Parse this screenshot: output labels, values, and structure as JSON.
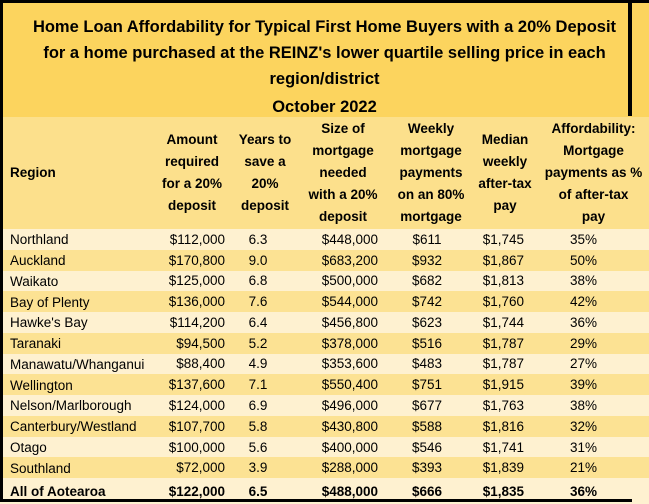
{
  "chart_data": {
    "type": "table",
    "title": "Home Loan Affordability for Typical First Home Buyers with a 20% Deposit for a home purchased at the REINZ's lower quartile selling price in each region/district",
    "subtitle": "October 2022",
    "columns": [
      "Region",
      "Amount required for a 20% deposit",
      "Years to save a 20% deposit",
      "Size of mortgage needed with a 20% deposit",
      "Weekly mortgage payments on an 80% mortgage",
      "Median weekly after-tax pay",
      "Affordability: Mortgage payments as % of after-tax pay"
    ],
    "rows": [
      [
        "Northland",
        "$112,000",
        "6.3",
        "$448,000",
        "$611",
        "$1,745",
        "35%"
      ],
      [
        "Auckland",
        "$170,800",
        "9.0",
        "$683,200",
        "$932",
        "$1,867",
        "50%"
      ],
      [
        "Waikato",
        "$125,000",
        "6.8",
        "$500,000",
        "$682",
        "$1,813",
        "38%"
      ],
      [
        "Bay of Plenty",
        "$136,000",
        "7.6",
        "$544,000",
        "$742",
        "$1,760",
        "42%"
      ],
      [
        "Hawke's Bay",
        "$114,200",
        "6.4",
        "$456,800",
        "$623",
        "$1,744",
        "36%"
      ],
      [
        "Taranaki",
        "$94,500",
        "5.2",
        "$378,000",
        "$516",
        "$1,787",
        "29%"
      ],
      [
        "Manawatu/Whanganui",
        "$88,400",
        "4.9",
        "$353,600",
        "$483",
        "$1,787",
        "27%"
      ],
      [
        "Wellington",
        "$137,600",
        "7.1",
        "$550,400",
        "$751",
        "$1,915",
        "39%"
      ],
      [
        "Nelson/Marlborough",
        "$124,000",
        "6.9",
        "$496,000",
        "$677",
        "$1,763",
        "38%"
      ],
      [
        "Canterbury/Westland",
        "$107,700",
        "5.8",
        "$430,800",
        "$588",
        "$1,816",
        "32%"
      ],
      [
        "Otago",
        "$100,000",
        "5.6",
        "$400,000",
        "$546",
        "$1,741",
        "31%"
      ],
      [
        "Southland",
        "$72,000",
        "3.9",
        "$288,000",
        "$393",
        "$1,839",
        "21%"
      ],
      [
        "All of Aotearoa",
        "$122,000",
        "6.5",
        "$488,000",
        "$666",
        "$1,835",
        "36%"
      ]
    ]
  },
  "title": {
    "lines": [
      "Home Loan Affordability for Typical First Home Buyers with a 20% Deposit",
      "for a home purchased at the REINZ's lower quartile selling price in each",
      "region/district"
    ],
    "subtitle": "October 2022"
  },
  "table": {
    "columns": [
      {
        "id": "region",
        "lines": [
          "Region"
        ]
      },
      {
        "id": "deposit_amount",
        "lines": [
          "Amount",
          "required",
          "for a 20%",
          "deposit"
        ]
      },
      {
        "id": "years_to_save",
        "lines": [
          "Years to",
          "save a",
          "20%",
          "deposit"
        ]
      },
      {
        "id": "mortgage_size",
        "lines": [
          "Size of",
          "mortgage",
          "needed",
          "with a 20%",
          "deposit"
        ]
      },
      {
        "id": "weekly_payments",
        "lines": [
          "Weekly",
          "mortgage",
          "payments",
          "on an 80%",
          "mortgage"
        ]
      },
      {
        "id": "median_pay",
        "lines": [
          "Median",
          "weekly",
          "after-tax",
          "pay"
        ]
      },
      {
        "id": "affordability",
        "lines": [
          "Affordability:",
          "Mortgage",
          "payments as %",
          "of after-tax",
          "pay"
        ]
      }
    ],
    "rows": [
      {
        "region": "Northland",
        "deposit_amount": "$112,000",
        "years_to_save": "6.3",
        "mortgage_size": "$448,000",
        "weekly_payments": "$611",
        "median_pay": "$1,745",
        "affordability": "35%",
        "bold": false
      },
      {
        "region": "Auckland",
        "deposit_amount": "$170,800",
        "years_to_save": "9.0",
        "mortgage_size": "$683,200",
        "weekly_payments": "$932",
        "median_pay": "$1,867",
        "affordability": "50%",
        "bold": false
      },
      {
        "region": "Waikato",
        "deposit_amount": "$125,000",
        "years_to_save": "6.8",
        "mortgage_size": "$500,000",
        "weekly_payments": "$682",
        "median_pay": "$1,813",
        "affordability": "38%",
        "bold": false
      },
      {
        "region": "Bay of Plenty",
        "deposit_amount": "$136,000",
        "years_to_save": "7.6",
        "mortgage_size": "$544,000",
        "weekly_payments": "$742",
        "median_pay": "$1,760",
        "affordability": "42%",
        "bold": false
      },
      {
        "region": "Hawke's Bay",
        "deposit_amount": "$114,200",
        "years_to_save": "6.4",
        "mortgage_size": "$456,800",
        "weekly_payments": "$623",
        "median_pay": "$1,744",
        "affordability": "36%",
        "bold": false
      },
      {
        "region": "Taranaki",
        "deposit_amount": "$94,500",
        "years_to_save": "5.2",
        "mortgage_size": "$378,000",
        "weekly_payments": "$516",
        "median_pay": "$1,787",
        "affordability": "29%",
        "bold": false
      },
      {
        "region": "Manawatu/Whanganui",
        "deposit_amount": "$88,400",
        "years_to_save": "4.9",
        "mortgage_size": "$353,600",
        "weekly_payments": "$483",
        "median_pay": "$1,787",
        "affordability": "27%",
        "bold": false
      },
      {
        "region": "Wellington",
        "deposit_amount": "$137,600",
        "years_to_save": "7.1",
        "mortgage_size": "$550,400",
        "weekly_payments": "$751",
        "median_pay": "$1,915",
        "affordability": "39%",
        "bold": false
      },
      {
        "region": "Nelson/Marlborough",
        "deposit_amount": "$124,000",
        "years_to_save": "6.9",
        "mortgage_size": "$496,000",
        "weekly_payments": "$677",
        "median_pay": "$1,763",
        "affordability": "38%",
        "bold": false
      },
      {
        "region": "Canterbury/Westland",
        "deposit_amount": "$107,700",
        "years_to_save": "5.8",
        "mortgage_size": "$430,800",
        "weekly_payments": "$588",
        "median_pay": "$1,816",
        "affordability": "32%",
        "bold": false
      },
      {
        "region": "Otago",
        "deposit_amount": "$100,000",
        "years_to_save": "5.6",
        "mortgage_size": "$400,000",
        "weekly_payments": "$546",
        "median_pay": "$1,741",
        "affordability": "31%",
        "bold": false
      },
      {
        "region": "Southland",
        "deposit_amount": "$72,000",
        "years_to_save": "3.9",
        "mortgage_size": "$288,000",
        "weekly_payments": "$393",
        "median_pay": "$1,839",
        "affordability": "21%",
        "bold": false
      },
      {
        "region": "All of Aotearoa",
        "deposit_amount": "$122,000",
        "years_to_save": "6.5",
        "mortgage_size": "$488,000",
        "weekly_payments": "$666",
        "median_pay": "$1,835",
        "affordability": "36%",
        "bold": true
      }
    ]
  },
  "colors": {
    "background_gold": "#FCD45E",
    "header_band": "#FCE08C",
    "row_cream": "#FEF1D0",
    "row_yellow": "#FCE293",
    "border": "#000000",
    "text": "#000000"
  }
}
